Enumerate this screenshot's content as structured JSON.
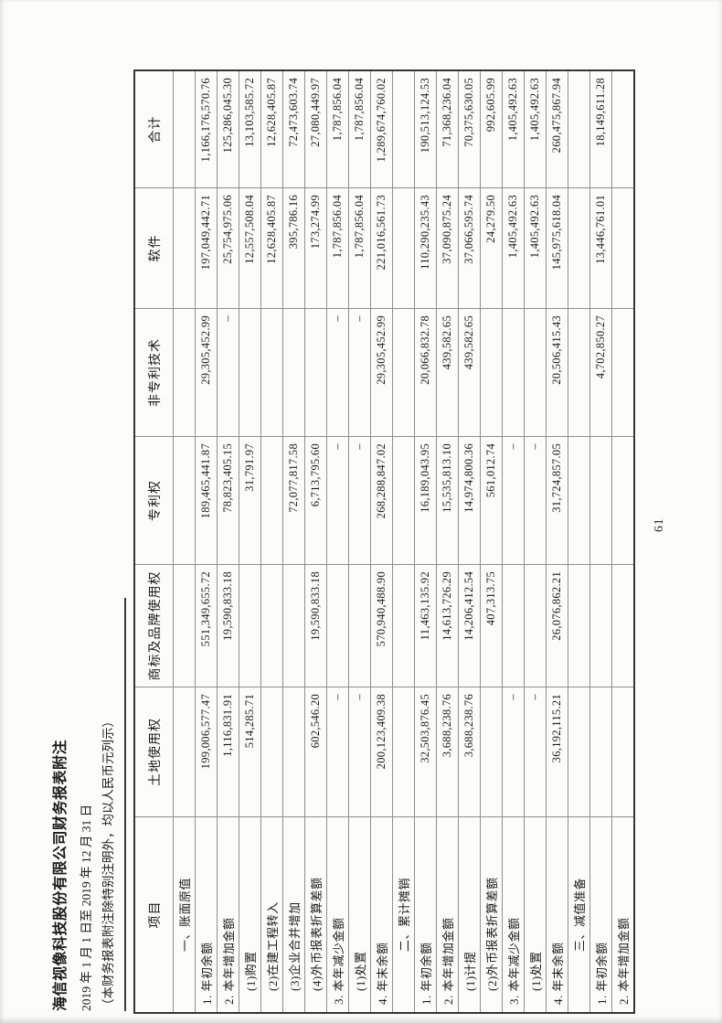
{
  "header": {
    "title": "海信视像科技股份有限公司财务报表附注",
    "period": "2019 年 1 月 1 日至 2019 年 12 月 31 日",
    "note": "（本财务报表附注除特别注明外，均以人民币元列示）"
  },
  "footer": {
    "page_number": "61"
  },
  "table": {
    "columns": [
      "项目",
      "土地使用权",
      "商标及品牌使用权",
      "专利权",
      "非专利技术",
      "软件",
      "合计"
    ],
    "rows": [
      {
        "label": "一、账面原值",
        "type": "section",
        "values": [
          "",
          "",
          "",
          "",
          "",
          ""
        ]
      },
      {
        "label": "1. 年初余额",
        "type": "item",
        "values": [
          "199,006,577.47",
          "551,349,655.72",
          "189,465,441.87",
          "29,305,452.99",
          "197,049,442.71",
          "1,166,176,570.76"
        ]
      },
      {
        "label": "2. 本年增加金额",
        "type": "item",
        "values": [
          "1,116,831.91",
          "19,590,833.18",
          "78,823,405.15",
          "–",
          "25,754,975.06",
          "125,286,045.30"
        ]
      },
      {
        "label": "(1)购置",
        "type": "subitem",
        "values": [
          "514,285.71",
          "",
          "31,791.97",
          "",
          "12,557,508.04",
          "13,103,585.72"
        ]
      },
      {
        "label": "(2)在建工程转入",
        "type": "subitem",
        "values": [
          "",
          "",
          "",
          "",
          "12,628,405.87",
          "12,628,405.87"
        ]
      },
      {
        "label": "(3)企业合并增加",
        "type": "subitem",
        "values": [
          "",
          "",
          "72,077,817.58",
          "",
          "395,786.16",
          "72,473,603.74"
        ]
      },
      {
        "label": "(4)外币报表折算差额",
        "type": "subitem",
        "values": [
          "602,546.20",
          "19,590,833.18",
          "6,713,795.60",
          "",
          "173,274.99",
          "27,080,449.97"
        ]
      },
      {
        "label": "3. 本年减少金额",
        "type": "item",
        "values": [
          "–",
          "",
          "–",
          "–",
          "1,787,856.04",
          "1,787,856.04"
        ]
      },
      {
        "label": "(1)处置",
        "type": "subitem",
        "values": [
          "–",
          "",
          "–",
          "–",
          "1,787,856.04",
          "1,787,856.04"
        ]
      },
      {
        "label": "4. 年末余额",
        "type": "item",
        "values": [
          "200,123,409.38",
          "570,940,488.90",
          "268,288,847.02",
          "29,305,452.99",
          "221,016,561.73",
          "1,289,674,760.02"
        ]
      },
      {
        "label": "二、累计摊销",
        "type": "section",
        "values": [
          "",
          "",
          "",
          "",
          "",
          ""
        ]
      },
      {
        "label": "1. 年初余额",
        "type": "item",
        "values": [
          "32,503,876.45",
          "11,463,135.92",
          "16,189,043.95",
          "20,066,832.78",
          "110,290,235.43",
          "190,513,124.53"
        ]
      },
      {
        "label": "2. 本年增加金额",
        "type": "item",
        "values": [
          "3,688,238.76",
          "14,613,726.29",
          "15,535,813.10",
          "439,582.65",
          "37,090,875.24",
          "71,368,236.04"
        ]
      },
      {
        "label": "(1)计提",
        "type": "subitem",
        "values": [
          "3,688,238.76",
          "14,206,412.54",
          "14,974,800.36",
          "439,582.65",
          "37,066,595.74",
          "70,375,630.05"
        ]
      },
      {
        "label": "(2)外币报表折算差额",
        "type": "subitem",
        "values": [
          "",
          "407,313.75",
          "561,012.74",
          "",
          "24,279.50",
          "992,605.99"
        ]
      },
      {
        "label": "3. 本年减少金额",
        "type": "item",
        "values": [
          "–",
          "",
          "–",
          "",
          "1,405,492.63",
          "1,405,492.63"
        ]
      },
      {
        "label": "(1)处置",
        "type": "subitem",
        "values": [
          "–",
          "",
          "–",
          "",
          "1,405,492.63",
          "1,405,492.63"
        ]
      },
      {
        "label": "4. 年末余额",
        "type": "item",
        "values": [
          "36,192,115.21",
          "26,076,862.21",
          "31,724,857.05",
          "20,506,415.43",
          "145,975,618.04",
          "260,475,867.94"
        ]
      },
      {
        "label": "三、减值准备",
        "type": "section",
        "values": [
          "",
          "",
          "",
          "",
          "",
          ""
        ]
      },
      {
        "label": "1. 年初余额",
        "type": "item",
        "values": [
          "",
          "",
          "",
          "4,702,850.27",
          "13,446,761.01",
          "18,149,611.28"
        ]
      },
      {
        "label": "2. 本年增加金额",
        "type": "item",
        "values": [
          "",
          "",
          "",
          "",
          "",
          ""
        ]
      }
    ]
  }
}
